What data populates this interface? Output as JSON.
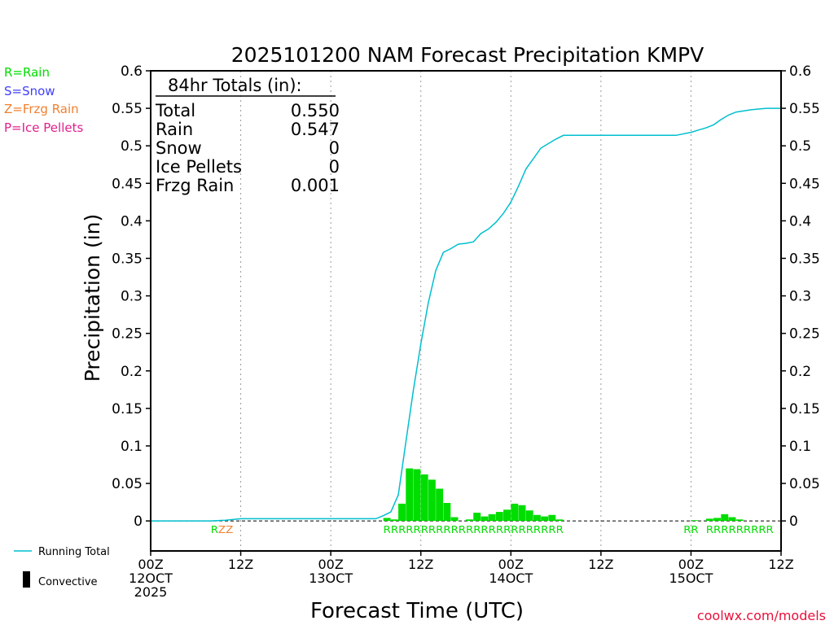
{
  "colors": {
    "rain": "#00dd00",
    "snow": "#4040ff",
    "frzg": "#f08030",
    "ice": "#e0208c",
    "running_total": "#00bfcf",
    "axis": "#000000",
    "credit": "#e8113a"
  },
  "ptype_legend": [
    {
      "label": "R=Rain",
      "color": "#00dd00"
    },
    {
      "label": "S=Snow",
      "color": "#4040ff"
    },
    {
      "label": "Z=Frzg Rain",
      "color": "#f08030"
    },
    {
      "label": "P=Ice Pellets",
      "color": "#e0208c"
    }
  ],
  "totals": {
    "title": "84hr Totals (in):",
    "rows": [
      {
        "label": "Total",
        "value": "0.550"
      },
      {
        "label": "Rain",
        "value": "0.547"
      },
      {
        "label": "Snow",
        "value": "0"
      },
      {
        "label": "Ice Pellets",
        "value": "0"
      },
      {
        "label": "Frzg Rain",
        "value": "0.001"
      }
    ]
  },
  "series_legend": {
    "running_total": "Running Total",
    "convective": "Convective"
  },
  "credit": "coolwx.com/models",
  "chart_data": {
    "type": "bar",
    "title": "2025101200 NAM Forecast Precipitation KMPV",
    "xlabel": "Forecast Time (UTC)",
    "ylabel": "Precipitation (in)",
    "xlim": [
      0,
      84
    ],
    "ylim": [
      -0.04,
      0.6
    ],
    "yticks": [
      0,
      0.05,
      0.1,
      0.15,
      0.2,
      0.25,
      0.3,
      0.35,
      0.4,
      0.45,
      0.5,
      0.55,
      0.6
    ],
    "ytick_labels": [
      "0",
      "0.05",
      "0.1",
      "0.15",
      "0.2",
      "0.25",
      "0.3",
      "0.35",
      "0.4",
      "0.45",
      "0.5",
      "0.55",
      "0.6"
    ],
    "xticks": [
      {
        "hour": 0,
        "lines": [
          "00Z",
          "12OCT",
          "2025"
        ]
      },
      {
        "hour": 12,
        "lines": [
          "12Z"
        ]
      },
      {
        "hour": 24,
        "lines": [
          "00Z",
          "13OCT"
        ]
      },
      {
        "hour": 36,
        "lines": [
          "12Z"
        ]
      },
      {
        "hour": 48,
        "lines": [
          "00Z",
          "14OCT"
        ]
      },
      {
        "hour": 60,
        "lines": [
          "12Z"
        ]
      },
      {
        "hour": 72,
        "lines": [
          "00Z",
          "15OCT"
        ]
      },
      {
        "hour": 84,
        "lines": [
          "12Z"
        ]
      }
    ],
    "grid_hours": [
      12,
      24,
      36,
      48,
      60,
      72
    ],
    "bar_width_hours": 1,
    "bars": [
      {
        "hour": 31,
        "value": 0.004
      },
      {
        "hour": 32,
        "value": 0.002
      },
      {
        "hour": 33,
        "value": 0.023
      },
      {
        "hour": 34,
        "value": 0.07
      },
      {
        "hour": 35,
        "value": 0.069
      },
      {
        "hour": 36,
        "value": 0.062
      },
      {
        "hour": 37,
        "value": 0.055
      },
      {
        "hour": 38,
        "value": 0.043
      },
      {
        "hour": 39,
        "value": 0.024
      },
      {
        "hour": 40,
        "value": 0.005
      },
      {
        "hour": 42,
        "value": 0.002
      },
      {
        "hour": 43,
        "value": 0.011
      },
      {
        "hour": 44,
        "value": 0.006
      },
      {
        "hour": 45,
        "value": 0.009
      },
      {
        "hour": 46,
        "value": 0.012
      },
      {
        "hour": 47,
        "value": 0.015
      },
      {
        "hour": 48,
        "value": 0.023
      },
      {
        "hour": 49,
        "value": 0.021
      },
      {
        "hour": 50,
        "value": 0.014
      },
      {
        "hour": 51,
        "value": 0.008
      },
      {
        "hour": 52,
        "value": 0.006
      },
      {
        "hour": 53,
        "value": 0.008
      },
      {
        "hour": 54,
        "value": 0.002
      },
      {
        "hour": 72,
        "value": 0.001
      },
      {
        "hour": 74,
        "value": 0.003
      },
      {
        "hour": 75,
        "value": 0.004
      },
      {
        "hour": 76,
        "value": 0.009
      },
      {
        "hour": 77,
        "value": 0.005
      },
      {
        "hour": 78,
        "value": 0.002
      }
    ],
    "running_total": {
      "name": "Running Total",
      "x": [
        0,
        8,
        10,
        12,
        24,
        30,
        31,
        32,
        33,
        34,
        35,
        36,
        37,
        38,
        39,
        40,
        41,
        42,
        43,
        44,
        45,
        46,
        47,
        48,
        49,
        50,
        51,
        52,
        53,
        54,
        55,
        56,
        60,
        66,
        70,
        72,
        73,
        74,
        75,
        76,
        77,
        78,
        80,
        82,
        84
      ],
      "y": [
        0,
        0,
        0.001,
        0.003,
        0.003,
        0.003,
        0.007,
        0.012,
        0.035,
        0.105,
        0.174,
        0.236,
        0.291,
        0.334,
        0.358,
        0.363,
        0.369,
        0.37,
        0.372,
        0.383,
        0.389,
        0.398,
        0.41,
        0.425,
        0.446,
        0.469,
        0.483,
        0.497,
        0.503,
        0.509,
        0.514,
        0.514,
        0.514,
        0.514,
        0.514,
        0.518,
        0.521,
        0.524,
        0.528,
        0.535,
        0.541,
        0.545,
        0.548,
        0.55,
        0.55
      ]
    },
    "ptype_labels": [
      {
        "hour": 8,
        "text": "R",
        "color": "#00dd00"
      },
      {
        "hour": 9,
        "text": "Z",
        "color": "#f08030"
      },
      {
        "hour": 10,
        "text": "Z",
        "color": "#f08030"
      },
      {
        "start_hour": 31,
        "end_hour": 55,
        "char": "R",
        "color": "#00dd00"
      },
      {
        "start_hour": 71,
        "end_hour": 73,
        "char": "R",
        "color": "#00dd00"
      },
      {
        "start_hour": 74,
        "end_hour": 83,
        "char": "R",
        "color": "#00dd00"
      }
    ]
  }
}
